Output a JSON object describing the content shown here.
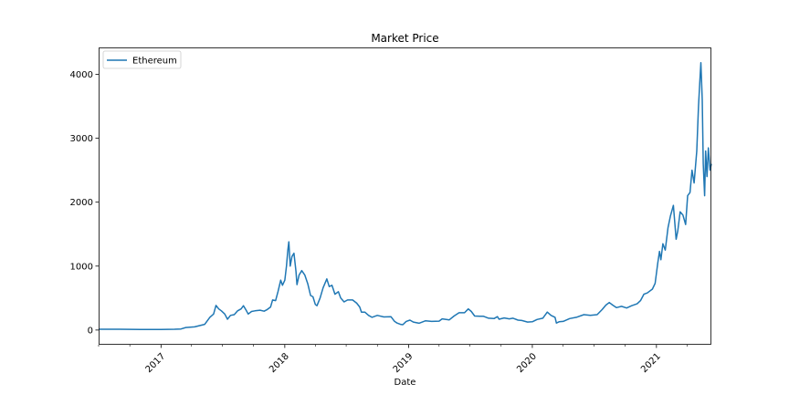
{
  "chart_data": {
    "type": "line",
    "title": "Market Price",
    "xlabel": "Date",
    "ylabel": "",
    "xlim": [
      "2016-07-01",
      "2021-06-12"
    ],
    "ylim": [
      -230,
      4420
    ],
    "x_ticks": [
      "2017",
      "2018",
      "2019",
      "2020",
      "2021"
    ],
    "y_ticks": [
      0,
      1000,
      2000,
      3000,
      4000
    ],
    "grid": false,
    "legend": "upper-left",
    "color": "#1f77b4",
    "series": [
      {
        "name": "Ethereum",
        "points": [
          [
            "2016-07-01",
            12
          ],
          [
            "2016-09-01",
            12
          ],
          [
            "2016-11-01",
            10
          ],
          [
            "2017-01-01",
            9
          ],
          [
            "2017-02-10",
            12
          ],
          [
            "2017-03-01",
            17
          ],
          [
            "2017-03-15",
            40
          ],
          [
            "2017-04-10",
            50
          ],
          [
            "2017-05-10",
            90
          ],
          [
            "2017-05-25",
            200
          ],
          [
            "2017-06-05",
            250
          ],
          [
            "2017-06-12",
            385
          ],
          [
            "2017-06-20",
            330
          ],
          [
            "2017-06-28",
            300
          ],
          [
            "2017-07-08",
            250
          ],
          [
            "2017-07-16",
            170
          ],
          [
            "2017-07-25",
            230
          ],
          [
            "2017-08-05",
            240
          ],
          [
            "2017-08-15",
            300
          ],
          [
            "2017-08-25",
            330
          ],
          [
            "2017-09-01",
            380
          ],
          [
            "2017-09-10",
            300
          ],
          [
            "2017-09-15",
            250
          ],
          [
            "2017-09-25",
            290
          ],
          [
            "2017-10-05",
            300
          ],
          [
            "2017-10-20",
            310
          ],
          [
            "2017-11-01",
            295
          ],
          [
            "2017-11-10",
            320
          ],
          [
            "2017-11-20",
            360
          ],
          [
            "2017-11-26",
            470
          ],
          [
            "2017-12-05",
            460
          ],
          [
            "2017-12-12",
            600
          ],
          [
            "2017-12-20",
            780
          ],
          [
            "2017-12-25",
            700
          ],
          [
            "2018-01-01",
            780
          ],
          [
            "2018-01-06",
            1000
          ],
          [
            "2018-01-10",
            1250
          ],
          [
            "2018-01-13",
            1380
          ],
          [
            "2018-01-17",
            1000
          ],
          [
            "2018-01-22",
            1150
          ],
          [
            "2018-01-28",
            1200
          ],
          [
            "2018-02-03",
            920
          ],
          [
            "2018-02-06",
            710
          ],
          [
            "2018-02-12",
            860
          ],
          [
            "2018-02-20",
            930
          ],
          [
            "2018-03-01",
            860
          ],
          [
            "2018-03-10",
            720
          ],
          [
            "2018-03-18",
            540
          ],
          [
            "2018-03-25",
            520
          ],
          [
            "2018-04-01",
            400
          ],
          [
            "2018-04-06",
            380
          ],
          [
            "2018-04-15",
            500
          ],
          [
            "2018-04-24",
            660
          ],
          [
            "2018-05-05",
            800
          ],
          [
            "2018-05-12",
            680
          ],
          [
            "2018-05-20",
            700
          ],
          [
            "2018-05-29",
            560
          ],
          [
            "2018-06-08",
            600
          ],
          [
            "2018-06-15",
            500
          ],
          [
            "2018-06-25",
            440
          ],
          [
            "2018-07-05",
            470
          ],
          [
            "2018-07-20",
            470
          ],
          [
            "2018-08-01",
            420
          ],
          [
            "2018-08-10",
            360
          ],
          [
            "2018-08-15",
            280
          ],
          [
            "2018-08-25",
            280
          ],
          [
            "2018-09-05",
            230
          ],
          [
            "2018-09-15",
            200
          ],
          [
            "2018-10-01",
            230
          ],
          [
            "2018-10-20",
            205
          ],
          [
            "2018-11-10",
            210
          ],
          [
            "2018-11-20",
            140
          ],
          [
            "2018-11-28",
            110
          ],
          [
            "2018-12-08",
            90
          ],
          [
            "2018-12-15",
            84
          ],
          [
            "2018-12-25",
            135
          ],
          [
            "2019-01-05",
            155
          ],
          [
            "2019-01-15",
            125
          ],
          [
            "2019-02-01",
            107
          ],
          [
            "2019-02-20",
            145
          ],
          [
            "2019-03-10",
            135
          ],
          [
            "2019-04-01",
            140
          ],
          [
            "2019-04-10",
            175
          ],
          [
            "2019-05-01",
            160
          ],
          [
            "2019-05-15",
            220
          ],
          [
            "2019-05-30",
            270
          ],
          [
            "2019-06-15",
            270
          ],
          [
            "2019-06-26",
            330
          ],
          [
            "2019-07-05",
            290
          ],
          [
            "2019-07-15",
            220
          ],
          [
            "2019-07-30",
            215
          ],
          [
            "2019-08-10",
            215
          ],
          [
            "2019-08-25",
            185
          ],
          [
            "2019-09-10",
            180
          ],
          [
            "2019-09-20",
            210
          ],
          [
            "2019-09-25",
            170
          ],
          [
            "2019-10-10",
            190
          ],
          [
            "2019-10-25",
            175
          ],
          [
            "2019-11-05",
            185
          ],
          [
            "2019-11-20",
            155
          ],
          [
            "2019-12-01",
            150
          ],
          [
            "2019-12-18",
            125
          ],
          [
            "2020-01-01",
            130
          ],
          [
            "2020-01-15",
            165
          ],
          [
            "2020-02-01",
            185
          ],
          [
            "2020-02-14",
            280
          ],
          [
            "2020-02-25",
            230
          ],
          [
            "2020-03-08",
            200
          ],
          [
            "2020-03-12",
            110
          ],
          [
            "2020-03-20",
            130
          ],
          [
            "2020-04-01",
            135
          ],
          [
            "2020-04-20",
            180
          ],
          [
            "2020-05-10",
            200
          ],
          [
            "2020-06-01",
            240
          ],
          [
            "2020-06-20",
            230
          ],
          [
            "2020-07-10",
            240
          ],
          [
            "2020-07-25",
            320
          ],
          [
            "2020-08-05",
            390
          ],
          [
            "2020-08-15",
            430
          ],
          [
            "2020-08-25",
            390
          ],
          [
            "2020-09-05",
            350
          ],
          [
            "2020-09-20",
            370
          ],
          [
            "2020-10-05",
            345
          ],
          [
            "2020-10-20",
            380
          ],
          [
            "2020-11-05",
            410
          ],
          [
            "2020-11-15",
            460
          ],
          [
            "2020-11-25",
            560
          ],
          [
            "2020-12-05",
            580
          ],
          [
            "2020-12-20",
            640
          ],
          [
            "2020-12-28",
            730
          ],
          [
            "2021-01-05",
            1050
          ],
          [
            "2021-01-10",
            1230
          ],
          [
            "2021-01-14",
            1100
          ],
          [
            "2021-01-20",
            1350
          ],
          [
            "2021-01-27",
            1250
          ],
          [
            "2021-02-04",
            1600
          ],
          [
            "2021-02-11",
            1780
          ],
          [
            "2021-02-20",
            1950
          ],
          [
            "2021-02-28",
            1420
          ],
          [
            "2021-03-05",
            1550
          ],
          [
            "2021-03-12",
            1850
          ],
          [
            "2021-03-20",
            1800
          ],
          [
            "2021-03-28",
            1650
          ],
          [
            "2021-04-03",
            2100
          ],
          [
            "2021-04-10",
            2150
          ],
          [
            "2021-04-16",
            2500
          ],
          [
            "2021-04-22",
            2300
          ],
          [
            "2021-04-30",
            2800
          ],
          [
            "2021-05-05",
            3500
          ],
          [
            "2021-05-09",
            3900
          ],
          [
            "2021-05-12",
            4180
          ],
          [
            "2021-05-16",
            3600
          ],
          [
            "2021-05-19",
            2600
          ],
          [
            "2021-05-23",
            2100
          ],
          [
            "2021-05-26",
            2800
          ],
          [
            "2021-05-30",
            2400
          ],
          [
            "2021-06-03",
            2850
          ],
          [
            "2021-06-08",
            2500
          ],
          [
            "2021-06-12",
            2600
          ]
        ]
      }
    ]
  }
}
